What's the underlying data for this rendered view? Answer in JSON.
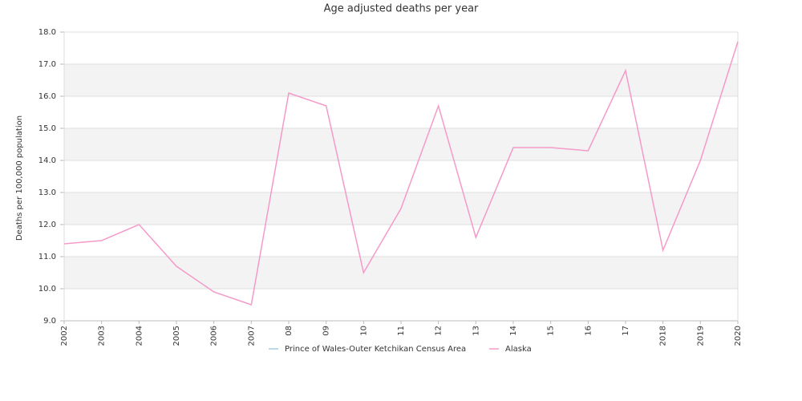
{
  "chart_data": {
    "type": "line",
    "title": "Age adjusted deaths per year",
    "y_label": "Deaths per 100,000 population",
    "categories": [
      "2002",
      "2003",
      "2004",
      "2005",
      "2006",
      "2007",
      "08",
      "09",
      "10",
      "11",
      "12",
      "13",
      "14",
      "15",
      "16",
      "17",
      "2018",
      "2019",
      "2020"
    ],
    "series": [
      {
        "name": "Prince of Wales-Outer Ketchikan Census Area",
        "color": "#a6cee3",
        "values": [
          null,
          null,
          null,
          null,
          null,
          null,
          null,
          null,
          null,
          null,
          null,
          null,
          null,
          null,
          null,
          null,
          null,
          null,
          null
        ]
      },
      {
        "name": "Alaska",
        "color": "#f49ac9",
        "values": [
          11.4,
          11.5,
          12.0,
          10.7,
          9.9,
          9.5,
          16.1,
          15.7,
          10.5,
          12.5,
          15.7,
          11.6,
          14.4,
          14.4,
          14.3,
          16.8,
          11.2,
          14.0,
          17.7
        ]
      }
    ],
    "ylim": [
      9,
      18
    ],
    "yticks": [
      {
        "value": 9,
        "label": "9.0"
      },
      {
        "value": 10,
        "label": "10.0"
      },
      {
        "value": 11,
        "label": "11.0"
      },
      {
        "value": 12,
        "label": "12.0"
      },
      {
        "value": 13,
        "label": "13.0"
      },
      {
        "value": 14,
        "label": "14.0"
      },
      {
        "value": 15,
        "label": "15.0"
      },
      {
        "value": 16,
        "label": "16.0"
      },
      {
        "value": 17,
        "label": "17.0"
      },
      {
        "value": 18,
        "label": "18.0"
      }
    ],
    "grid": true,
    "banded": true,
    "legend": "bottom"
  }
}
